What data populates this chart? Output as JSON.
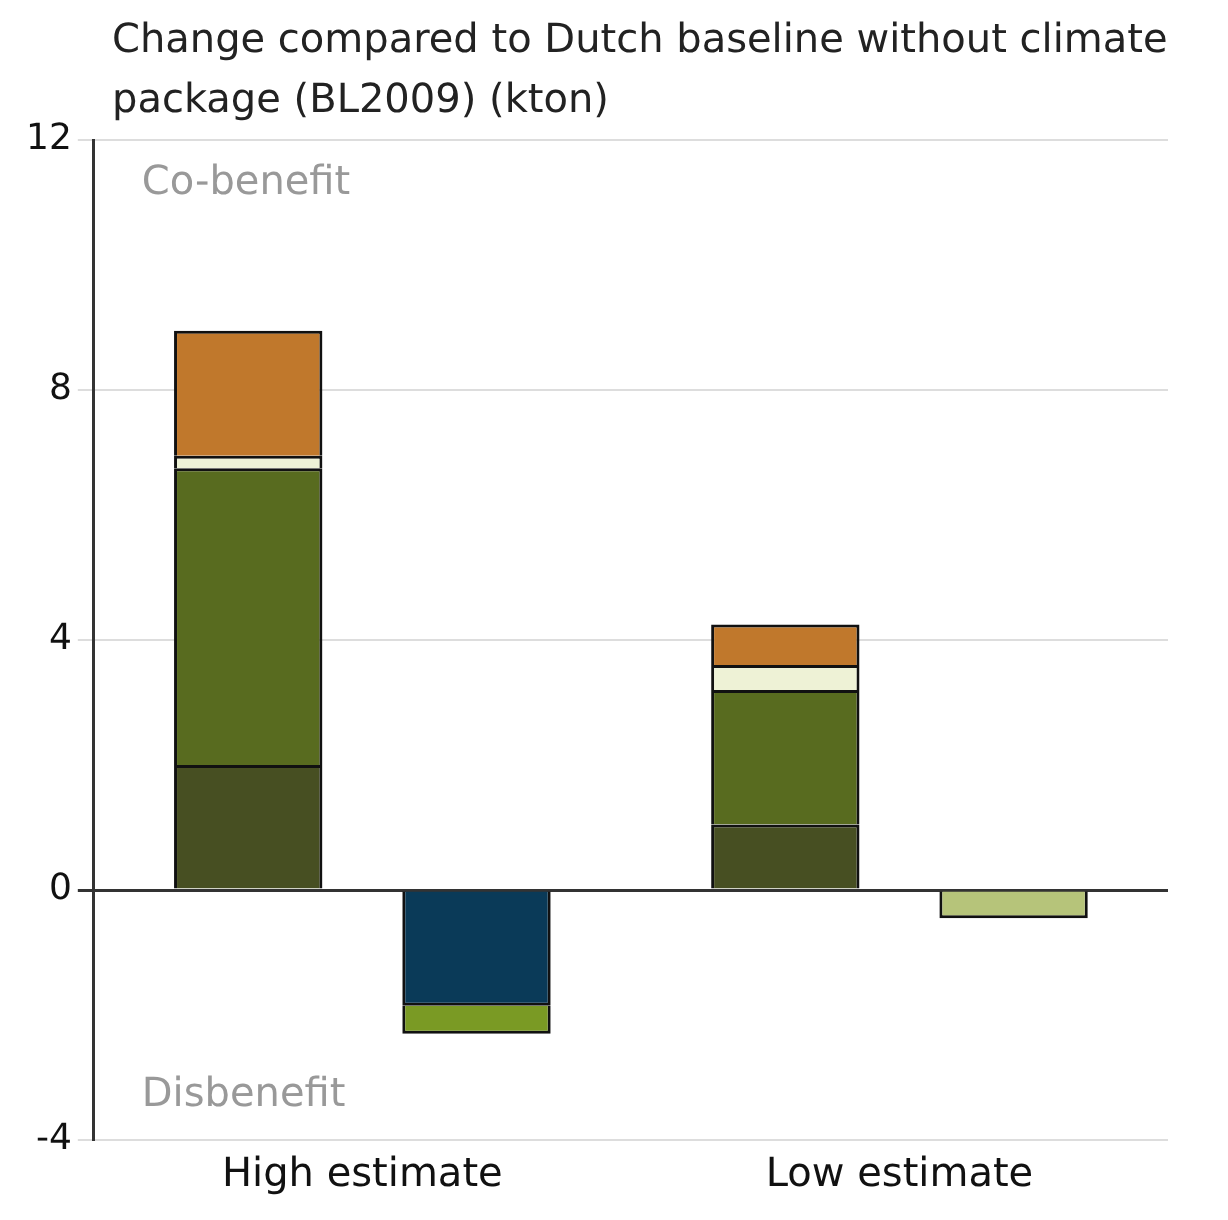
{
  "chart_data": {
    "type": "bar",
    "stacked": true,
    "title": "Change compared to Dutch baseline without climate package (BL2009) (kton)",
    "categories": [
      "High estimate",
      "Low estimate"
    ],
    "series": [
      {
        "color": "#474f22",
        "values": [
          2.0,
          1.05
        ]
      },
      {
        "color": "#586b1f",
        "values": [
          4.75,
          2.15
        ]
      },
      {
        "color": "#eef2d6",
        "values": [
          0.2,
          0.4
        ]
      },
      {
        "color": "#c0782c",
        "values": [
          2.0,
          0.65
        ]
      },
      {
        "color": "#0a3a58",
        "values": [
          -1.85,
          null
        ]
      },
      {
        "color": "#7a9a24",
        "values": [
          -0.45,
          null
        ]
      },
      {
        "color": "#b6c47a",
        "values": [
          null,
          -0.45
        ]
      }
    ],
    "ylim": [
      -4,
      12
    ],
    "yticks": [
      -4,
      0,
      4,
      8,
      12
    ],
    "grid": "y",
    "legend": false,
    "annotations": [
      "Co-benefit",
      "Disbenefit"
    ]
  }
}
